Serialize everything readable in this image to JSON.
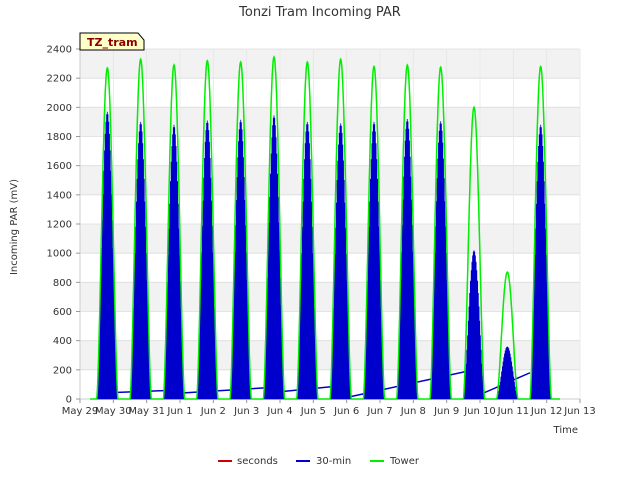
{
  "chart_data": {
    "type": "line",
    "title": "Tonzi Tram Incoming PAR",
    "xlabel": "Time",
    "ylabel": "Incoming PAR (mV)",
    "tag": "TZ_tram",
    "ylim": [
      0,
      2400
    ],
    "xlim": [
      0,
      15
    ],
    "y_ticks": [
      "0",
      "200",
      "400",
      "600",
      "800",
      "1000",
      "1200",
      "1400",
      "1600",
      "1800",
      "2000",
      "2200",
      "2400"
    ],
    "x_ticks": [
      "May 29",
      "May 30",
      "May 31",
      "Jun 1",
      "Jun 2",
      "Jun 3",
      "Jun 4",
      "Jun 5",
      "Jun 6",
      "Jun 7",
      "Jun 8",
      "Jun 9",
      "Jun 10",
      "Jun 11",
      "Jun 12",
      "Jun 13"
    ],
    "grid": true,
    "legend_position": "bottom",
    "series": [
      {
        "name": "seconds",
        "color": "#cc0000",
        "values": []
      },
      {
        "name": "30-min",
        "color": "#0000cc",
        "daily_peak": [
          1970,
          1900,
          1880,
          1910,
          1915,
          1945,
          1900,
          1890,
          1900,
          1920,
          1905,
          1020,
          360,
          1880
        ],
        "night_baseline": [
          [
            0.5,
            40
          ],
          [
            2.8,
            60
          ],
          [
            3.0,
            40
          ],
          [
            5.8,
            80
          ],
          [
            6.0,
            50
          ],
          [
            7.8,
            90
          ],
          [
            8.0,
            10
          ],
          [
            11.8,
            200
          ],
          [
            12.0,
            30
          ],
          [
            13.5,
            180
          ]
        ]
      },
      {
        "name": "Tower",
        "color": "#00ee00",
        "daily_peak": [
          2270,
          2330,
          2290,
          2320,
          2310,
          2345,
          2310,
          2330,
          2280,
          2290,
          2275,
          2000,
          870,
          2280
        ]
      }
    ],
    "daily_center_day": [
      0.82,
      1.82,
      2.82,
      3.82,
      4.82,
      5.82,
      6.82,
      7.82,
      8.82,
      9.82,
      10.82,
      11.82,
      12.82,
      13.82
    ]
  }
}
